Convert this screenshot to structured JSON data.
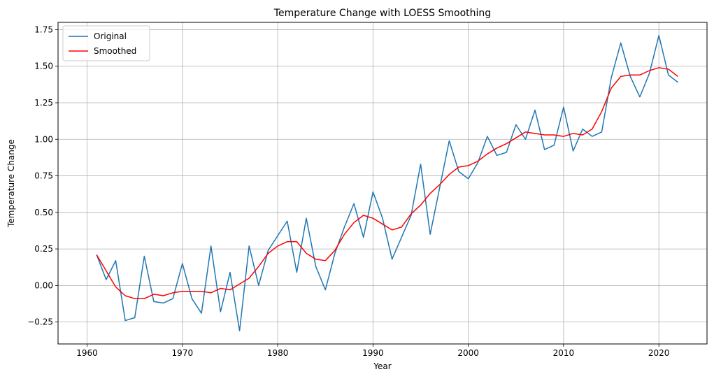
{
  "chart_data": {
    "type": "line",
    "title": "Temperature Change with LOESS Smoothing",
    "xlabel": "Year",
    "ylabel": "Temperature Change",
    "xlim": [
      1956.95,
      2025.05
    ],
    "ylim": [
      -0.4,
      1.8
    ],
    "xticks": [
      1960,
      1970,
      1980,
      1990,
      2000,
      2010,
      2020
    ],
    "yticks": [
      -0.25,
      0.0,
      0.25,
      0.5,
      0.75,
      1.0,
      1.25,
      1.5,
      1.75
    ],
    "ytick_labels": [
      "−0.25",
      "0.00",
      "0.25",
      "0.50",
      "0.75",
      "1.00",
      "1.25",
      "1.50",
      "1.75"
    ],
    "grid": true,
    "legend": "top-left",
    "x": [
      1961,
      1962,
      1963,
      1964,
      1965,
      1966,
      1967,
      1968,
      1969,
      1970,
      1971,
      1972,
      1973,
      1974,
      1975,
      1976,
      1977,
      1978,
      1979,
      1980,
      1981,
      1982,
      1983,
      1984,
      1985,
      1986,
      1987,
      1988,
      1989,
      1990,
      1991,
      1992,
      1993,
      1994,
      1995,
      1996,
      1997,
      1998,
      1999,
      2000,
      2001,
      2002,
      2003,
      2004,
      2005,
      2006,
      2007,
      2008,
      2009,
      2010,
      2011,
      2012,
      2013,
      2014,
      2015,
      2016,
      2017,
      2018,
      2019,
      2020,
      2021,
      2022
    ],
    "series": [
      {
        "name": "Original",
        "color": "#1f77b4",
        "values": [
          0.21,
          0.04,
          0.17,
          -0.24,
          -0.22,
          0.2,
          -0.11,
          -0.12,
          -0.09,
          0.15,
          -0.09,
          -0.19,
          0.27,
          -0.18,
          0.09,
          -0.31,
          0.27,
          0.0,
          0.24,
          0.34,
          0.44,
          0.09,
          0.46,
          0.13,
          -0.03,
          0.22,
          0.4,
          0.56,
          0.33,
          0.64,
          0.46,
          0.18,
          0.33,
          0.48,
          0.83,
          0.35,
          0.67,
          0.99,
          0.78,
          0.73,
          0.84,
          1.02,
          0.89,
          0.91,
          1.1,
          1.0,
          1.2,
          0.93,
          0.96,
          1.22,
          0.92,
          1.07,
          1.02,
          1.05,
          1.42,
          1.66,
          1.43,
          1.29,
          1.45,
          1.71,
          1.44,
          1.39
        ]
      },
      {
        "name": "Smoothed",
        "color": "#ff0000",
        "values": [
          0.21,
          0.1,
          -0.01,
          -0.07,
          -0.09,
          -0.09,
          -0.06,
          -0.07,
          -0.05,
          -0.04,
          -0.04,
          -0.04,
          -0.05,
          -0.02,
          -0.03,
          0.01,
          0.05,
          0.13,
          0.22,
          0.27,
          0.3,
          0.3,
          0.22,
          0.18,
          0.17,
          0.24,
          0.35,
          0.43,
          0.48,
          0.46,
          0.42,
          0.38,
          0.4,
          0.49,
          0.55,
          0.63,
          0.69,
          0.76,
          0.81,
          0.82,
          0.85,
          0.9,
          0.94,
          0.97,
          1.01,
          1.05,
          1.04,
          1.03,
          1.03,
          1.02,
          1.04,
          1.03,
          1.07,
          1.19,
          1.35,
          1.43,
          1.44,
          1.44,
          1.47,
          1.49,
          1.48,
          1.43
        ]
      }
    ]
  }
}
